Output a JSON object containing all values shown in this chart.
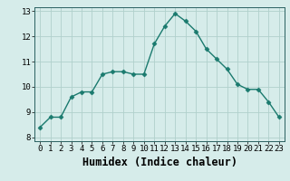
{
  "x": [
    0,
    1,
    2,
    3,
    4,
    5,
    6,
    7,
    8,
    9,
    10,
    11,
    12,
    13,
    14,
    15,
    16,
    17,
    18,
    19,
    20,
    21,
    22,
    23
  ],
  "y": [
    8.4,
    8.8,
    8.8,
    9.6,
    9.8,
    9.8,
    10.5,
    10.6,
    10.6,
    10.5,
    10.5,
    11.7,
    12.4,
    12.9,
    12.6,
    12.2,
    11.5,
    11.1,
    10.7,
    10.1,
    9.9,
    9.9,
    9.4,
    8.8
  ],
  "xlabel": "Humidex (Indice chaleur)",
  "xlim": [
    -0.5,
    23.5
  ],
  "ylim": [
    7.85,
    13.15
  ],
  "xticks": [
    0,
    1,
    2,
    3,
    4,
    5,
    6,
    7,
    8,
    9,
    10,
    11,
    12,
    13,
    14,
    15,
    16,
    17,
    18,
    19,
    20,
    21,
    22,
    23
  ],
  "yticks": [
    8,
    9,
    10,
    11,
    12,
    13
  ],
  "line_color": "#1a7a6e",
  "marker": "D",
  "marker_size": 2.5,
  "bg_color": "#d6ecea",
  "grid_color": "#b0d0cc",
  "tick_label_fontsize": 6.5,
  "xlabel_fontsize": 8.5
}
